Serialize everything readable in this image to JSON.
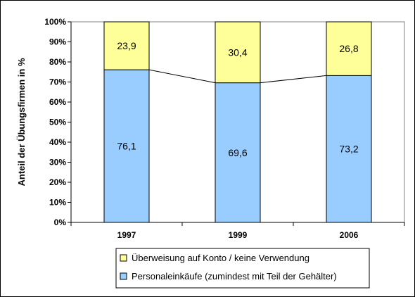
{
  "chart_data": {
    "type": "bar",
    "stacked": true,
    "categories": [
      "1997",
      "1999",
      "2006"
    ],
    "series": [
      {
        "name": "Personaleinkäufe (zumindest mit Teil der Gehälter)",
        "values": [
          76.1,
          69.6,
          73.2
        ],
        "labels": [
          "76,1",
          "69,6",
          "73,2"
        ],
        "color": "#99CCFF"
      },
      {
        "name": "Überweisung auf Konto / keine Verwendung",
        "values": [
          23.9,
          30.4,
          26.8
        ],
        "labels": [
          "23,9",
          "30,4",
          "26,8"
        ],
        "color": "#FFFF99"
      }
    ],
    "series_lines": true,
    "ylabel": "Anteil der Übungsfirmen in %",
    "xlabel": "",
    "ylim": [
      0,
      100
    ],
    "yticks": [
      "0%",
      "10%",
      "20%",
      "30%",
      "40%",
      "50%",
      "60%",
      "70%",
      "80%",
      "90%",
      "100%"
    ],
    "grid": false,
    "legend_position": "bottom",
    "legend_order": [
      "Überweisung auf Konto / keine Verwendung",
      "Personaleinkäufe (zumindest mit Teil der Gehälter)"
    ]
  }
}
